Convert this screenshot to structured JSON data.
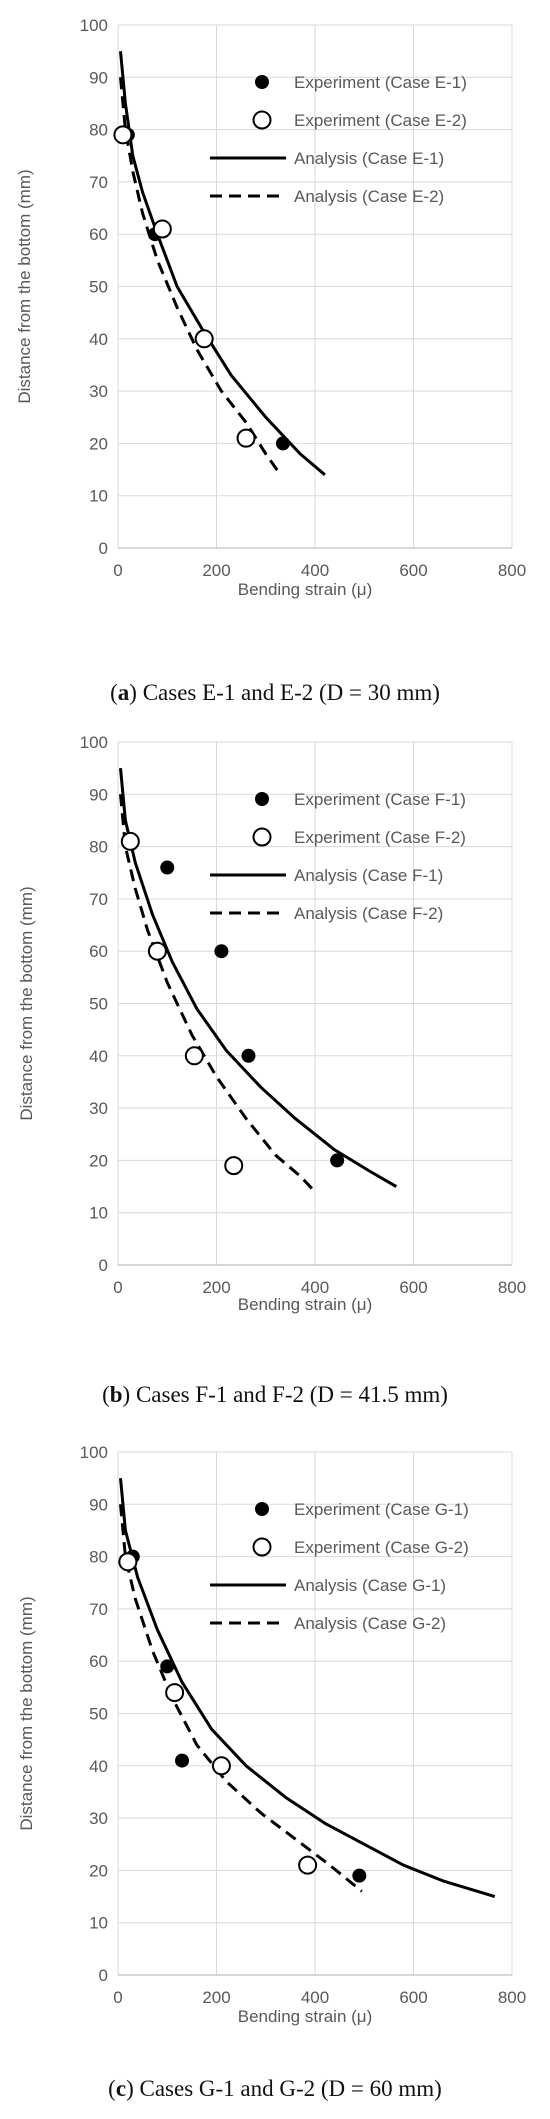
{
  "chart_data": [
    {
      "type": "line",
      "panel_label": "a",
      "caption": "Cases E-1 and E-2 (D = 30 mm)",
      "xlabel": "Bending strain (μ)",
      "ylabel": "Distance from the bottom (mm)",
      "xlim": [
        0,
        800
      ],
      "ylim": [
        0,
        100
      ],
      "xticks": [
        "0",
        "200",
        "400",
        "600",
        "800"
      ],
      "yticks": [
        "0",
        "10",
        "20",
        "30",
        "40",
        "50",
        "60",
        "70",
        "80",
        "90",
        "100"
      ],
      "grid": true,
      "legend_position": "top-right",
      "series": [
        {
          "name": "Experiment (Case E-1)",
          "style": "filled-marker",
          "x": [
            20,
            75,
            335
          ],
          "y": [
            79,
            60,
            20
          ]
        },
        {
          "name": "Experiment (Case E-2)",
          "style": "open-marker",
          "x": [
            10,
            90,
            175,
            260
          ],
          "y": [
            79,
            61,
            40,
            21
          ]
        },
        {
          "name": "Analysis (Case E-1)",
          "style": "solid",
          "x": [
            5,
            15,
            30,
            50,
            80,
            120,
            170,
            230,
            300,
            370,
            420
          ],
          "y": [
            95,
            85,
            75,
            68,
            60,
            50,
            42,
            33,
            25,
            18,
            14
          ]
        },
        {
          "name": "Analysis (Case E-2)",
          "style": "dashed",
          "x": [
            5,
            15,
            30,
            50,
            80,
            120,
            160,
            210,
            260,
            300,
            330
          ],
          "y": [
            90,
            80,
            72,
            64,
            55,
            46,
            38,
            30,
            24,
            18,
            14
          ]
        }
      ]
    },
    {
      "type": "line",
      "panel_label": "b",
      "caption": "Cases F-1 and F-2 (D = 41.5 mm)",
      "xlabel": "Bending strain  (μ)",
      "ylabel": "Distance from the bottom (mm)",
      "xlim": [
        0,
        800
      ],
      "ylim": [
        0,
        100
      ],
      "xticks": [
        "0",
        "200",
        "400",
        "600",
        "800"
      ],
      "yticks": [
        "0",
        "10",
        "20",
        "30",
        "40",
        "50",
        "60",
        "70",
        "80",
        "90",
        "100"
      ],
      "grid": true,
      "legend_position": "top-right",
      "series": [
        {
          "name": "Experiment (Case F-1)",
          "style": "filled-marker",
          "x": [
            100,
            210,
            265,
            445
          ],
          "y": [
            76,
            60,
            40,
            20
          ]
        },
        {
          "name": "Experiment (Case F-2)",
          "style": "open-marker",
          "x": [
            25,
            80,
            155,
            235
          ],
          "y": [
            81,
            60,
            40,
            19
          ]
        },
        {
          "name": "Analysis (Case F-1)",
          "style": "solid",
          "x": [
            5,
            15,
            35,
            70,
            110,
            160,
            220,
            290,
            360,
            440,
            510,
            565
          ],
          "y": [
            95,
            85,
            77,
            67,
            58,
            49,
            41,
            34,
            28,
            22,
            18,
            15
          ]
        },
        {
          "name": "Analysis (Case F-2)",
          "style": "dashed",
          "x": [
            5,
            15,
            35,
            60,
            100,
            150,
            200,
            260,
            320,
            370,
            400
          ],
          "y": [
            90,
            80,
            72,
            64,
            54,
            44,
            36,
            28,
            21,
            17,
            14
          ]
        }
      ]
    },
    {
      "type": "line",
      "panel_label": "c",
      "caption": "Cases G-1 and G-2 (D = 60 mm)",
      "xlabel": "Bending strain  (μ)",
      "ylabel": "Distance from the bottom (mm)",
      "xlim": [
        0,
        800
      ],
      "ylim": [
        0,
        100
      ],
      "xticks": [
        "0",
        "200",
        "400",
        "600",
        "800"
      ],
      "yticks": [
        "0",
        "10",
        "20",
        "30",
        "40",
        "50",
        "60",
        "70",
        "80",
        "90",
        "100"
      ],
      "grid": true,
      "legend_position": "top-right",
      "series": [
        {
          "name": "Experiment (Case G-1)",
          "style": "filled-marker",
          "x": [
            30,
            100,
            130,
            205,
            490
          ],
          "y": [
            80,
            59,
            41,
            40,
            19
          ]
        },
        {
          "name": "Experiment (Case G-2)",
          "style": "open-marker",
          "x": [
            20,
            115,
            210,
            385
          ],
          "y": [
            79,
            54,
            40,
            21
          ]
        },
        {
          "name": "Analysis (Case G-1)",
          "style": "solid",
          "x": [
            5,
            15,
            40,
            80,
            130,
            190,
            260,
            340,
            420,
            500,
            580,
            660,
            765
          ],
          "y": [
            95,
            85,
            76,
            66,
            56,
            47,
            40,
            34,
            29,
            25,
            21,
            18,
            15
          ]
        },
        {
          "name": "Analysis (Case G-2)",
          "style": "dashed",
          "x": [
            5,
            15,
            35,
            70,
            110,
            160,
            220,
            290,
            360,
            430,
            495
          ],
          "y": [
            90,
            80,
            72,
            62,
            53,
            44,
            37,
            31,
            26,
            21,
            16
          ]
        }
      ]
    }
  ]
}
